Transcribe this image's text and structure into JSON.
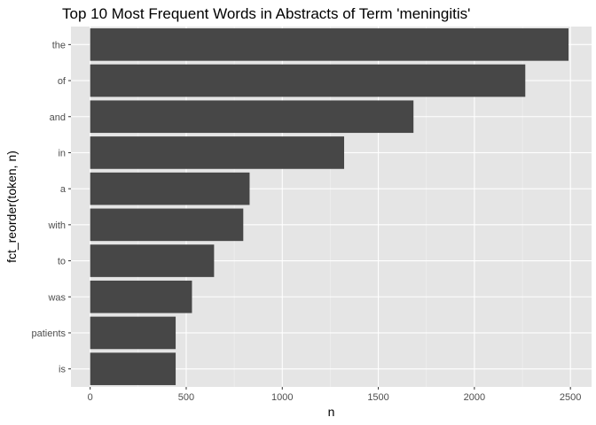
{
  "chart_data": {
    "type": "bar",
    "orientation": "horizontal",
    "title": "Top 10 Most Frequent Words in Abstracts of Term 'meningitis'",
    "xlabel": "n",
    "ylabel": "fct_reorder(token, n)",
    "categories": [
      "the",
      "of",
      "and",
      "in",
      "a",
      "with",
      "to",
      "was",
      "patients",
      "is"
    ],
    "values": [
      2490,
      2265,
      1683,
      1322,
      830,
      797,
      645,
      530,
      445,
      445
    ],
    "xlim": [
      -100,
      2610
    ],
    "xticks": [
      0,
      500,
      1000,
      1500,
      2000,
      2500
    ],
    "xtick_labels": [
      "0",
      "500",
      "1000",
      "1500",
      "2000",
      "2500"
    ],
    "grid": true,
    "colors": {
      "panel_background": "#e5e5e5",
      "grid_major": "#ffffff",
      "grid_minor": "#f2f2f2",
      "bar_fill": "#474747",
      "tick_text": "#4d4d4d",
      "tick_mark": "#333333"
    }
  }
}
